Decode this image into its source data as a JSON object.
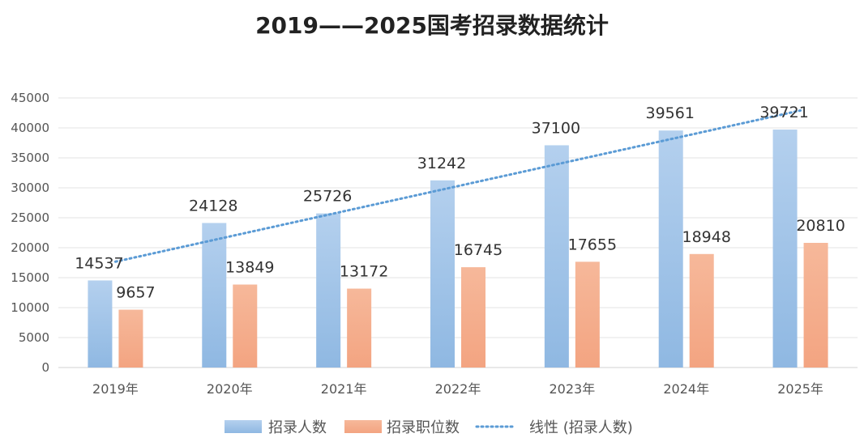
{
  "chart_data": {
    "type": "bar",
    "title": "2019——2025国考招录数据统计",
    "categories": [
      "2019年",
      "2020年",
      "2021年",
      "2022年",
      "2023年",
      "2024年",
      "2025年"
    ],
    "series": [
      {
        "name": "招录人数",
        "values": [
          14537,
          24128,
          25726,
          31242,
          37100,
          39561,
          39721
        ],
        "color": "#9dc3e6"
      },
      {
        "name": "招录职位数",
        "values": [
          9657,
          13849,
          13172,
          16745,
          17655,
          18948,
          20810
        ],
        "color": "#f4b183"
      }
    ],
    "trendline": {
      "name": "线性 (招录人数)",
      "type": "linear",
      "series": "招录人数",
      "color": "#5b9bd5"
    },
    "yticks": [
      "0",
      "5000",
      "10000",
      "15000",
      "20000",
      "25000",
      "30000",
      "35000",
      "40000",
      "45000"
    ],
    "ylim": [
      0,
      45000
    ],
    "grid": true,
    "legend_position": "bottom"
  }
}
